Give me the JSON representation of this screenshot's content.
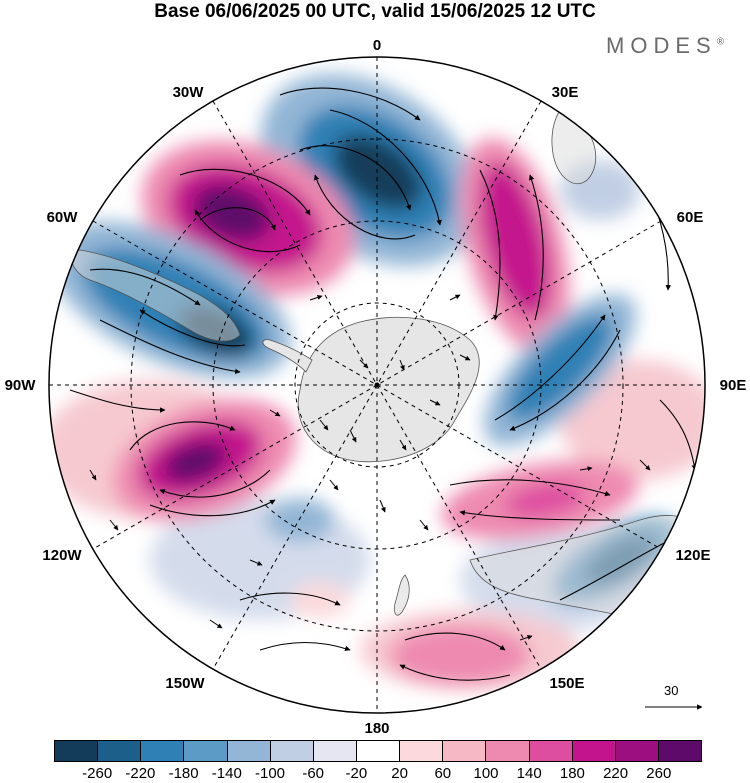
{
  "header": {
    "title": "Base 06/06/2025 00 UTC, valid 15/06/2025 12 UTC",
    "brand": "MODES",
    "brand_mark": "®"
  },
  "map": {
    "projection": "south-polar-stereographic",
    "longitude_labels": [
      "0",
      "30E",
      "60E",
      "90E",
      "120E",
      "150E",
      "180",
      "150W",
      "120W",
      "90W",
      "60W",
      "30W"
    ],
    "reference_vector_label": "30"
  },
  "colorbar": {
    "colors": [
      "#123c5a",
      "#1b5f8a",
      "#2f80b5",
      "#5b9bc6",
      "#93b6d6",
      "#c1cfe4",
      "#e6e5f2",
      "#ffffff",
      "#fbd9dc",
      "#f6b8c4",
      "#ee8ab0",
      "#de4ea0",
      "#c4148d",
      "#9b0f80",
      "#5e0a6a"
    ],
    "tick_labels": [
      "-260",
      "-220",
      "-180",
      "-140",
      "-100",
      "-60",
      "-20",
      "20",
      "60",
      "100",
      "140",
      "180",
      "220",
      "260"
    ]
  },
  "colors": {
    "land": "#e6e6e6",
    "coast": "#555555",
    "arrows": "#000000"
  }
}
